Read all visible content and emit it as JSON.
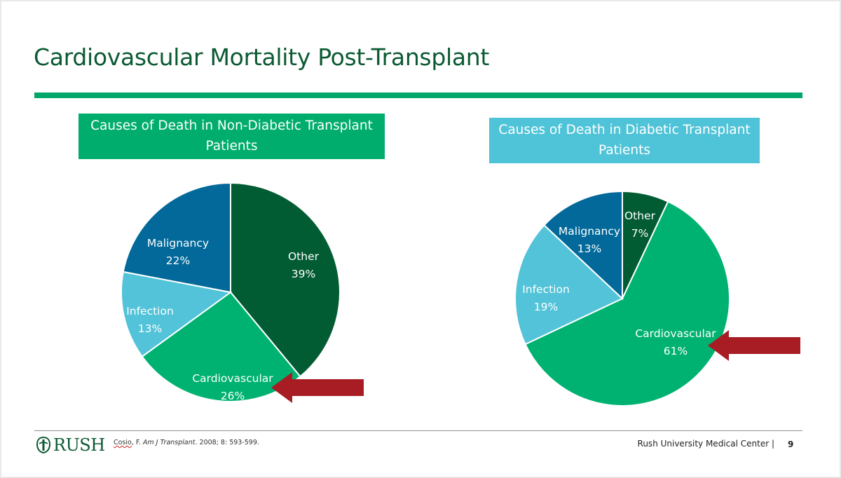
{
  "slide": {
    "title": "Cardiovascular Mortality Post-Transplant",
    "citation": {
      "author": "Cosio",
      "rest1": ", F. ",
      "journal": "Am J Transplant",
      "rest2": ". 2008; 8: 593-599."
    },
    "organization": "Rush University Medical Center |",
    "page_number": "9",
    "logo_text": "RUSH"
  },
  "colors": {
    "dark_green": "#0b5a32",
    "accent_green": "#00a66a",
    "cardiovascular": "#00b271",
    "other": "#025c33",
    "malignancy": "#02699a",
    "infection": "#52c3d8",
    "arrow": "#a81c24",
    "header_right": "#4fc3d7"
  },
  "chart_data": [
    {
      "type": "pie",
      "title": "Causes of Death in Non-Diabetic Transplant Patients",
      "slices": [
        {
          "label": "Other",
          "value": 39,
          "value_text": "39%",
          "color": "#025c33"
        },
        {
          "label": "Cardiovascular",
          "value": 26,
          "value_text": "26%",
          "color": "#00b271"
        },
        {
          "label": "Infection",
          "value": 13,
          "value_text": "13%",
          "color": "#52c3d8"
        },
        {
          "label": "Malignancy",
          "value": 22,
          "value_text": "22%",
          "color": "#02699a"
        }
      ],
      "highlight": "Cardiovascular"
    },
    {
      "type": "pie",
      "title": "Causes of Death in Diabetic Transplant Patients",
      "slices": [
        {
          "label": "Other",
          "value": 7,
          "value_text": "7%",
          "color": "#025c33"
        },
        {
          "label": "Cardiovascular",
          "value": 61,
          "value_text": "61%",
          "color": "#00b271"
        },
        {
          "label": "Infection",
          "value": 19,
          "value_text": "19%",
          "color": "#52c3d8"
        },
        {
          "label": "Malignancy",
          "value": 13,
          "value_text": "13%",
          "color": "#02699a"
        }
      ],
      "highlight": "Cardiovascular"
    }
  ]
}
